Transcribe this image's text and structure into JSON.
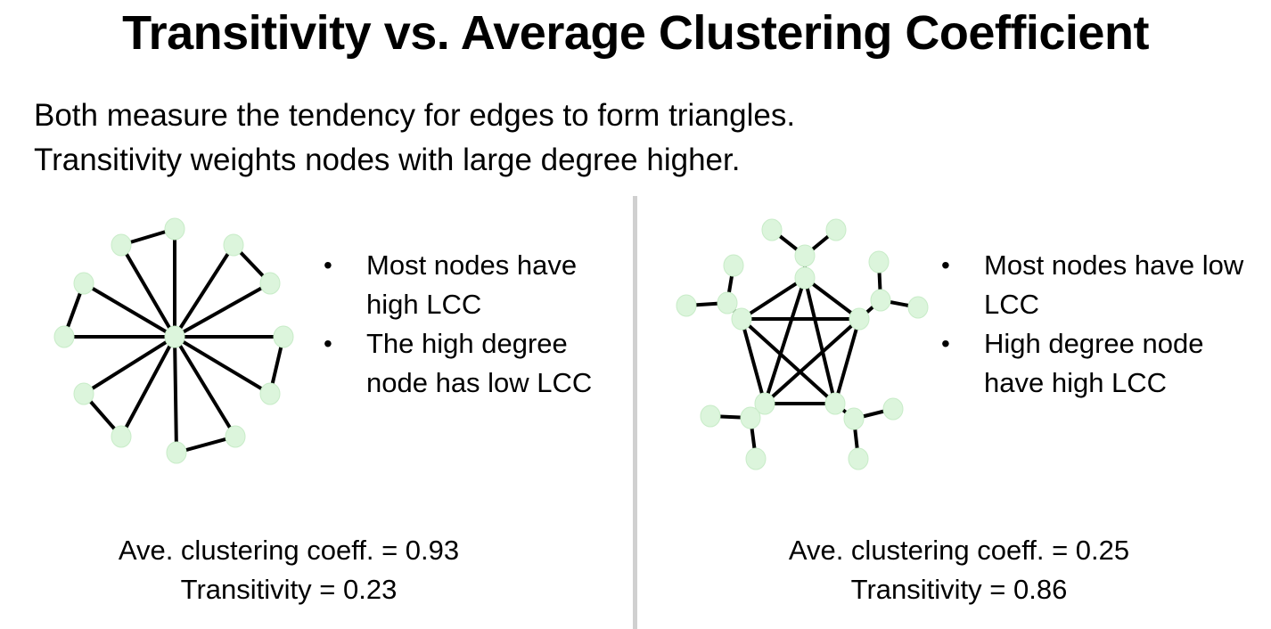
{
  "title": "Transitivity vs. Average Clustering Coefficient",
  "intro": [
    "Both measure the tendency for edges to form triangles.",
    "Transitivity weights nodes with large degree higher."
  ],
  "left_panel": {
    "bullets": [
      "Most nodes have high LCC",
      "The high degree node has low LCC"
    ],
    "stat_lines": [
      "Ave. clustering coeff. = 0.93",
      "Transitivity = 0.23"
    ]
  },
  "right_panel": {
    "bullets": [
      "Most nodes have low LCC",
      "High degree node have high LCC"
    ],
    "stat_lines": [
      "Ave. clustering coeff. = 0.25",
      "Transitivity = 0.86"
    ]
  },
  "colors": {
    "node_fill": "#dcf5dc",
    "edge": "#000000",
    "divider": "#d0d0d0"
  }
}
